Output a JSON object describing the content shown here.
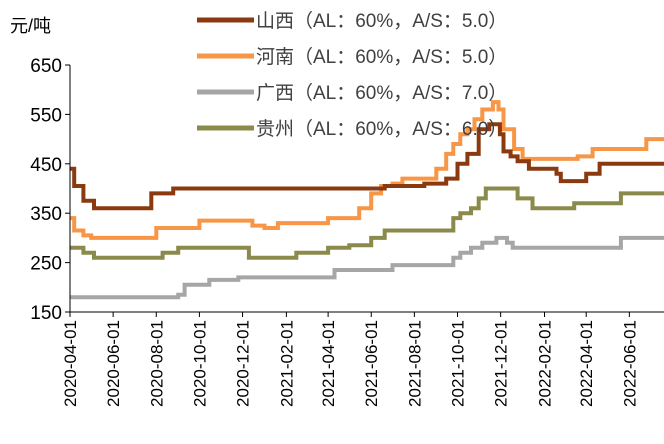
{
  "chart_data": {
    "type": "line",
    "y_unit": "元/吨",
    "ylim": [
      150,
      650
    ],
    "y_ticks": [
      150,
      250,
      350,
      450,
      550,
      650
    ],
    "x_range": [
      "2020-04-01",
      "2022-07-20"
    ],
    "x_ticks": [
      "2020-04-01",
      "2020-06-01",
      "2020-08-01",
      "2020-10-01",
      "2020-12-01",
      "2021-02-01",
      "2021-04-01",
      "2021-06-01",
      "2021-08-01",
      "2021-10-01",
      "2021-12-01",
      "2022-02-01",
      "2022-04-01",
      "2022-06-01"
    ],
    "grid": false,
    "legend_position": "top-center",
    "series": [
      {
        "name": "山西（AL：60%，A/S：5.0）",
        "color": "#8B3A0F",
        "x": [
          "2020-04-01",
          "2020-04-07",
          "2020-04-07",
          "2020-04-20",
          "2020-04-20",
          "2020-05-05",
          "2020-05-05",
          "2020-07-25",
          "2020-07-25",
          "2020-08-25",
          "2020-08-25",
          "2021-06-20",
          "2021-06-20",
          "2021-08-15",
          "2021-08-15",
          "2021-09-15",
          "2021-09-15",
          "2021-10-01",
          "2021-10-01",
          "2021-10-15",
          "2021-10-15",
          "2021-10-31",
          "2021-10-31",
          "2021-11-15",
          "2021-11-15",
          "2021-11-30",
          "2021-11-30",
          "2021-12-05",
          "2021-12-05",
          "2021-12-15",
          "2021-12-15",
          "2021-12-25",
          "2021-12-25",
          "2022-01-10",
          "2022-01-10",
          "2022-02-18",
          "2022-02-18",
          "2022-02-24",
          "2022-02-24",
          "2022-04-01",
          "2022-04-01",
          "2022-04-20",
          "2022-04-20",
          "2022-07-20"
        ],
        "values": [
          440,
          440,
          405,
          405,
          375,
          375,
          360,
          360,
          390,
          390,
          400,
          400,
          405,
          405,
          410,
          410,
          420,
          420,
          450,
          450,
          470,
          470,
          520,
          520,
          530,
          530,
          510,
          510,
          475,
          475,
          465,
          465,
          455,
          455,
          440,
          440,
          430,
          430,
          415,
          415,
          430,
          430,
          450,
          450
        ]
      },
      {
        "name": "河南（AL：60%，A/S：5.0）",
        "color": "#F79646",
        "x": [
          "2020-04-01",
          "2020-04-07",
          "2020-04-07",
          "2020-04-20",
          "2020-04-20",
          "2020-05-01",
          "2020-05-01",
          "2020-08-01",
          "2020-08-01",
          "2020-09-01",
          "2020-09-01",
          "2020-10-01",
          "2020-10-01",
          "2020-12-15",
          "2020-12-15",
          "2021-01-01",
          "2021-01-01",
          "2021-01-20",
          "2021-01-20",
          "2021-04-01",
          "2021-04-01",
          "2021-05-15",
          "2021-05-15",
          "2021-06-01",
          "2021-06-01",
          "2021-06-15",
          "2021-06-15",
          "2021-07-01",
          "2021-07-01",
          "2021-07-15",
          "2021-07-15",
          "2021-09-01",
          "2021-09-01",
          "2021-09-15",
          "2021-09-15",
          "2021-09-25",
          "2021-09-25",
          "2021-10-05",
          "2021-10-05",
          "2021-10-15",
          "2021-10-15",
          "2021-10-25",
          "2021-10-25",
          "2021-11-05",
          "2021-11-05",
          "2021-11-20",
          "2021-11-20",
          "2021-11-28",
          "2021-11-28",
          "2021-12-05",
          "2021-12-05",
          "2021-12-20",
          "2021-12-20",
          "2022-01-01",
          "2022-01-01",
          "2022-03-20",
          "2022-03-20",
          "2022-04-10",
          "2022-04-10",
          "2022-06-25",
          "2022-06-25",
          "2022-07-20"
        ],
        "values": [
          340,
          340,
          315,
          315,
          305,
          305,
          300,
          300,
          320,
          320,
          320,
          320,
          335,
          335,
          325,
          325,
          320,
          320,
          330,
          330,
          340,
          340,
          360,
          360,
          390,
          390,
          405,
          405,
          410,
          410,
          420,
          420,
          440,
          440,
          470,
          470,
          490,
          490,
          510,
          510,
          520,
          520,
          540,
          540,
          560,
          560,
          575,
          575,
          560,
          560,
          520,
          520,
          480,
          480,
          460,
          460,
          465,
          465,
          480,
          480,
          500,
          500
        ]
      },
      {
        "name": "广西（AL：60%，A/S：7.0）",
        "color": "#A6A6A6",
        "x": [
          "2020-04-01",
          "2020-09-01",
          "2020-09-01",
          "2020-09-10",
          "2020-09-10",
          "2020-10-15",
          "2020-10-15",
          "2020-11-25",
          "2020-11-25",
          "2021-04-10",
          "2021-04-10",
          "2021-07-01",
          "2021-07-01",
          "2021-09-25",
          "2021-09-25",
          "2021-10-05",
          "2021-10-05",
          "2021-10-20",
          "2021-10-20",
          "2021-11-05",
          "2021-11-05",
          "2021-11-25",
          "2021-11-25",
          "2021-12-10",
          "2021-12-10",
          "2021-12-18",
          "2021-12-18",
          "2022-05-20",
          "2022-05-20",
          "2022-07-20"
        ],
        "values": [
          180,
          180,
          185,
          185,
          205,
          205,
          215,
          215,
          220,
          220,
          235,
          235,
          245,
          245,
          260,
          260,
          270,
          270,
          280,
          280,
          290,
          290,
          300,
          300,
          290,
          290,
          280,
          280,
          300,
          300
        ]
      },
      {
        "name": "贵州（AL：60%，A/S：6.0）",
        "color": "#8A8A4A",
        "x": [
          "2020-04-01",
          "2020-04-20",
          "2020-04-20",
          "2020-05-05",
          "2020-05-05",
          "2020-08-10",
          "2020-08-10",
          "2020-09-01",
          "2020-09-01",
          "2020-12-10",
          "2020-12-10",
          "2021-02-15",
          "2021-02-15",
          "2021-04-01",
          "2021-04-01",
          "2021-05-01",
          "2021-05-01",
          "2021-06-01",
          "2021-06-01",
          "2021-06-20",
          "2021-06-20",
          "2021-09-25",
          "2021-09-25",
          "2021-10-05",
          "2021-10-05",
          "2021-10-20",
          "2021-10-20",
          "2021-10-31",
          "2021-10-31",
          "2021-11-10",
          "2021-11-10",
          "2021-12-25",
          "2021-12-25",
          "2022-01-15",
          "2022-01-15",
          "2022-03-15",
          "2022-03-15",
          "2022-05-20",
          "2022-05-20",
          "2022-07-20"
        ],
        "values": [
          280,
          280,
          270,
          270,
          260,
          260,
          270,
          270,
          280,
          280,
          260,
          260,
          270,
          270,
          280,
          280,
          285,
          285,
          300,
          300,
          315,
          315,
          340,
          340,
          350,
          350,
          360,
          360,
          380,
          380,
          400,
          400,
          380,
          380,
          360,
          360,
          370,
          370,
          390,
          390
        ]
      }
    ]
  }
}
